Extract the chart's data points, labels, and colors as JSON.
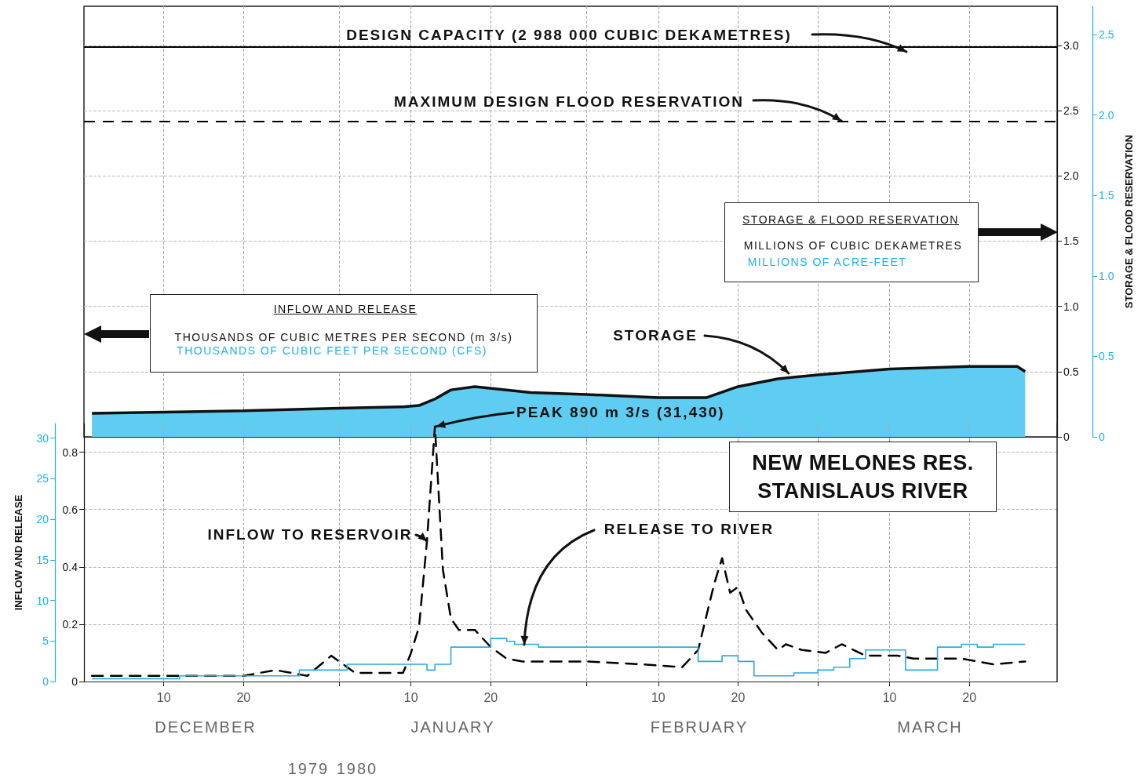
{
  "chart_data": [
    {
      "type": "area",
      "xlim": [
        "1979-11-30",
        "1980-03-31"
      ],
      "xticks": [
        {
          "value": "1979-12-10",
          "label": null
        },
        {
          "value": "1979-12-20",
          "label": null
        },
        {
          "value": "1980-01-01",
          "label": null
        },
        {
          "value": "1980-01-10",
          "label": null
        },
        {
          "value": "1980-01-20",
          "label": null
        },
        {
          "value": "1980-02-01",
          "label": null
        },
        {
          "value": "1980-02-10",
          "label": null
        },
        {
          "value": "1980-02-20",
          "label": null
        },
        {
          "value": "1980-03-01",
          "label": null
        },
        {
          "value": "1980-03-10",
          "label": null
        },
        {
          "value": "1980-03-20",
          "label": null
        }
      ],
      "ylim": [
        0,
        3.3
      ],
      "yticks": [
        0,
        0.5,
        {
          "value": 1,
          "label": "1.0"
        },
        1.5,
        {
          "value": 2,
          "label": "2.0"
        },
        2.5,
        {
          "value": 3,
          "label": "3.0"
        }
      ],
      "y2lim": [
        0,
        2.675
      ],
      "y2ticks": [
        0,
        0.5,
        {
          "value": 1,
          "label": "1.0"
        },
        1.5,
        {
          "value": 2,
          "label": "2.0"
        },
        2.5
      ],
      "y2label": "STORAGE & FLOOD RESERVATION",
      "tick_labels": "y",
      "series": [
        {
          "name": "STORAGE",
          "color": "#5fcdf2",
          "x": [
            "1979-12-01",
            "1979-12-20",
            "1980-01-01",
            "1980-01-09",
            "1980-01-11",
            "1980-01-13",
            "1980-01-15",
            "1980-01-18",
            "1980-01-25",
            "1980-02-01",
            "1980-02-10",
            "1980-02-16",
            "1980-02-20",
            "1980-02-25",
            "1980-03-01",
            "1980-03-10",
            "1980-03-20",
            "1980-03-26",
            "1980-03-27"
          ],
          "values": [
            0.18,
            0.2,
            0.22,
            0.23,
            0.24,
            0.29,
            0.36,
            0.385,
            0.34,
            0.325,
            0.3,
            0.3,
            0.385,
            0.445,
            0.475,
            0.52,
            0.54,
            0.54,
            0.5
          ]
        }
      ],
      "ref_lines": [
        {
          "axis": "y",
          "value": 2.988,
          "label": "DESIGN CAPACITY (2 988 000 CUBIC DEKAMETRES)",
          "color": "#000000",
          "line_style": "solid"
        },
        {
          "axis": "y",
          "value": 2.42,
          "label": "MAXIMUM DESIGN FLOOD RESERVATION",
          "color": "#000000",
          "line_style": "dashed"
        }
      ],
      "annotations": [
        "STORAGE & FLOOD RESERVATION",
        "MILLIONS OF CUBIC DEKAMETRES",
        "MILLIONS OF ACRE-FEET"
      ],
      "grid": true,
      "legend": false,
      "marker": "none"
    },
    {
      "type": "line",
      "title": "NEW MELONES RES.",
      "subtitle": "STANISLAUS RIVER",
      "xlim": [
        "1979-11-30",
        "1980-03-31"
      ],
      "xticks": [
        {
          "value": "1979-12-10",
          "label": "10"
        },
        {
          "value": "1979-12-20",
          "label": "20"
        },
        {
          "value": "1980-01-01",
          "label": null
        },
        {
          "value": "1980-01-10",
          "label": "10"
        },
        {
          "value": "1980-01-20",
          "label": "20"
        },
        {
          "value": "1980-02-01",
          "label": null
        },
        {
          "value": "1980-02-10",
          "label": "10"
        },
        {
          "value": "1980-02-20",
          "label": "20"
        },
        {
          "value": "1980-03-01",
          "label": null
        },
        {
          "value": "1980-03-10",
          "label": "10"
        },
        {
          "value": "1980-03-20",
          "label": "20"
        }
      ],
      "ylim": [
        0,
        0.9
      ],
      "yticks": [
        0,
        0.2,
        0.4,
        0.6,
        0.8
      ],
      "y2lim": [
        0,
        31.8
      ],
      "y2ticks": [
        0,
        5,
        10,
        15,
        20,
        25,
        30
      ],
      "y2label": "INFLOW AND RELEASE",
      "series": [
        {
          "name": "INFLOW TO RESERVOIR",
          "color": "#000000",
          "line_style": "dashed",
          "x": [
            "1979-12-01",
            "1979-12-20",
            "1979-12-24",
            "1979-12-28",
            "1979-12-31",
            "1980-01-03",
            "1980-01-05",
            "1980-01-09",
            "1980-01-10",
            "1980-01-11",
            "1980-01-12",
            "1980-01-13",
            "1980-01-14",
            "1980-01-15",
            "1980-01-16",
            "1980-01-18",
            "1980-01-20",
            "1980-01-22",
            "1980-01-24",
            "1980-01-27",
            "1980-02-01",
            "1980-02-08",
            "1980-02-13",
            "1980-02-15",
            "1980-02-17",
            "1980-02-18",
            "1980-02-19",
            "1980-02-20",
            "1980-02-21",
            "1980-02-23",
            "1980-02-25",
            "1980-02-26",
            "1980-02-28",
            "1980-03-02",
            "1980-03-04",
            "1980-03-07",
            "1980-03-10",
            "1980-03-11",
            "1980-03-13",
            "1980-03-16",
            "1980-03-19",
            "1980-03-21",
            "1980-03-23",
            "1980-03-27"
          ],
          "values": [
            0.02,
            0.02,
            0.04,
            0.02,
            0.09,
            0.03,
            0.03,
            0.03,
            0.1,
            0.19,
            0.49,
            0.89,
            0.39,
            0.22,
            0.18,
            0.18,
            0.12,
            0.08,
            0.07,
            0.07,
            0.07,
            0.06,
            0.05,
            0.11,
            0.34,
            0.43,
            0.31,
            0.33,
            0.25,
            0.17,
            0.11,
            0.13,
            0.11,
            0.1,
            0.13,
            0.09,
            0.09,
            0.09,
            0.08,
            0.08,
            0.08,
            0.07,
            0.06,
            0.07
          ]
        },
        {
          "name": "RELEASE TO RIVER",
          "type": "step",
          "color": "#29abe2",
          "line_style": "solid",
          "x": [
            "1979-12-01",
            "1979-12-12",
            "1979-12-27",
            "1980-01-02",
            "1980-01-12",
            "1980-01-13",
            "1980-01-15",
            "1980-01-20",
            "1980-01-22",
            "1980-01-23",
            "1980-01-26",
            "1980-02-15",
            "1980-02-18",
            "1980-02-20",
            "1980-02-22",
            "1980-02-27",
            "1980-03-01",
            "1980-03-03",
            "1980-03-05",
            "1980-03-07",
            "1980-03-12",
            "1980-03-16",
            "1980-03-19",
            "1980-03-21",
            "1980-03-23",
            "1980-03-27"
          ],
          "values": [
            0.01,
            0.02,
            0.04,
            0.06,
            0.04,
            0.06,
            0.12,
            0.15,
            0.14,
            0.13,
            0.12,
            0.07,
            0.09,
            0.07,
            0.02,
            0.03,
            0.04,
            0.05,
            0.08,
            0.11,
            0.04,
            0.12,
            0.13,
            0.12,
            0.13,
            0.13
          ]
        }
      ],
      "annotations": [
        "INFLOW AND RELEASE",
        "THOUSANDS OF CUBIC METRES PER SECOND (m 3/s)",
        "THOUSANDS OF CUBIC FEET PER SECOND (CFS)",
        {
          "text": "PEAK 890 m 3/s (31,430)",
          "x": "1980-01-13",
          "y": 0.89
        },
        "DECEMBER",
        "JANUARY",
        "FEBRUARY",
        "MARCH",
        "1979",
        "1980"
      ],
      "grid": true,
      "legend": false,
      "marker": "none"
    }
  ]
}
